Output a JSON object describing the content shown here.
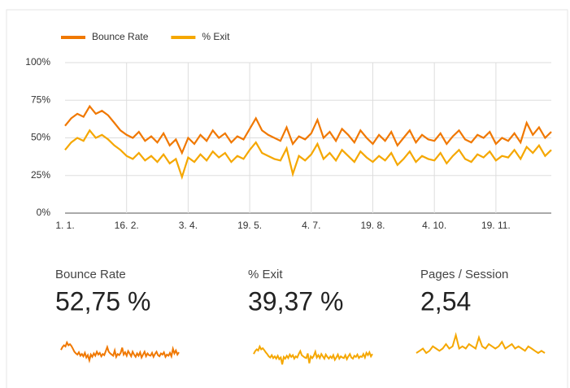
{
  "chart_data": {
    "type": "line",
    "categories": [
      "1. 1.",
      null,
      null,
      null,
      null,
      null,
      null,
      null,
      null,
      null,
      "16. 2.",
      null,
      null,
      null,
      null,
      null,
      null,
      null,
      null,
      null,
      "3. 4.",
      null,
      null,
      null,
      null,
      null,
      null,
      null,
      null,
      null,
      "19. 5.",
      null,
      null,
      null,
      null,
      null,
      null,
      null,
      null,
      null,
      "4. 7.",
      null,
      null,
      null,
      null,
      null,
      null,
      null,
      null,
      null,
      "19. 8.",
      null,
      null,
      null,
      null,
      null,
      null,
      null,
      null,
      null,
      "4. 10.",
      null,
      null,
      null,
      null,
      null,
      null,
      null,
      null,
      null,
      "19. 11.",
      null,
      null,
      null,
      null,
      null,
      null,
      null,
      null,
      null
    ],
    "series": [
      {
        "name": "Bounce Rate",
        "color": "#f07800",
        "values": [
          58,
          63,
          66,
          64,
          71,
          66,
          68,
          65,
          60,
          55,
          52,
          50,
          54,
          48,
          51,
          47,
          53,
          45,
          49,
          40,
          50,
          46,
          52,
          48,
          55,
          50,
          53,
          47,
          51,
          49,
          56,
          63,
          55,
          52,
          50,
          48,
          57,
          46,
          51,
          49,
          53,
          62,
          50,
          54,
          48,
          56,
          52,
          47,
          55,
          50,
          46,
          52,
          48,
          54,
          45,
          50,
          55,
          47,
          52,
          49,
          48,
          53,
          46,
          51,
          55,
          49,
          47,
          52,
          50,
          54,
          46,
          50,
          48,
          53,
          47,
          60,
          52,
          57,
          50,
          54
        ]
      },
      {
        "name": "% Exit",
        "color": "#f5a700",
        "values": [
          42,
          47,
          50,
          48,
          55,
          50,
          52,
          49,
          45,
          42,
          38,
          36,
          40,
          35,
          38,
          34,
          39,
          33,
          36,
          24,
          37,
          34,
          39,
          35,
          41,
          37,
          40,
          34,
          38,
          36,
          42,
          47,
          40,
          38,
          36,
          35,
          43,
          26,
          38,
          35,
          39,
          46,
          36,
          40,
          35,
          42,
          38,
          34,
          41,
          37,
          34,
          38,
          35,
          40,
          32,
          36,
          41,
          34,
          38,
          36,
          35,
          40,
          33,
          38,
          42,
          36,
          34,
          39,
          37,
          41,
          35,
          38,
          37,
          42,
          36,
          44,
          40,
          45,
          38,
          42
        ]
      }
    ],
    "ylim": [
      0,
      100
    ],
    "yticks": [
      {
        "value": 0,
        "label": "0%"
      },
      {
        "value": 25,
        "label": "25%"
      },
      {
        "value": 50,
        "label": "50%"
      },
      {
        "value": 75,
        "label": "75%"
      },
      {
        "value": 100,
        "label": "100%"
      }
    ],
    "grid": true
  },
  "scorecards": [
    {
      "label": "Bounce Rate",
      "value": "52,75 %"
    },
    {
      "label": "% Exit",
      "value": "39,37 %"
    },
    {
      "label": "Pages / Session",
      "value": "2,54",
      "sparkline": [
        2.3,
        2.4,
        2.5,
        2.3,
        2.4,
        2.6,
        2.5,
        2.4,
        2.5,
        2.7,
        2.5,
        2.6,
        3.1,
        2.5,
        2.6,
        2.5,
        2.7,
        2.6,
        2.5,
        3.0,
        2.6,
        2.5,
        2.7,
        2.6,
        2.5,
        2.6,
        2.8,
        2.5,
        2.6,
        2.7,
        2.5,
        2.6,
        2.5,
        2.4,
        2.6,
        2.5,
        2.4,
        2.3,
        2.4,
        2.3
      ]
    }
  ]
}
